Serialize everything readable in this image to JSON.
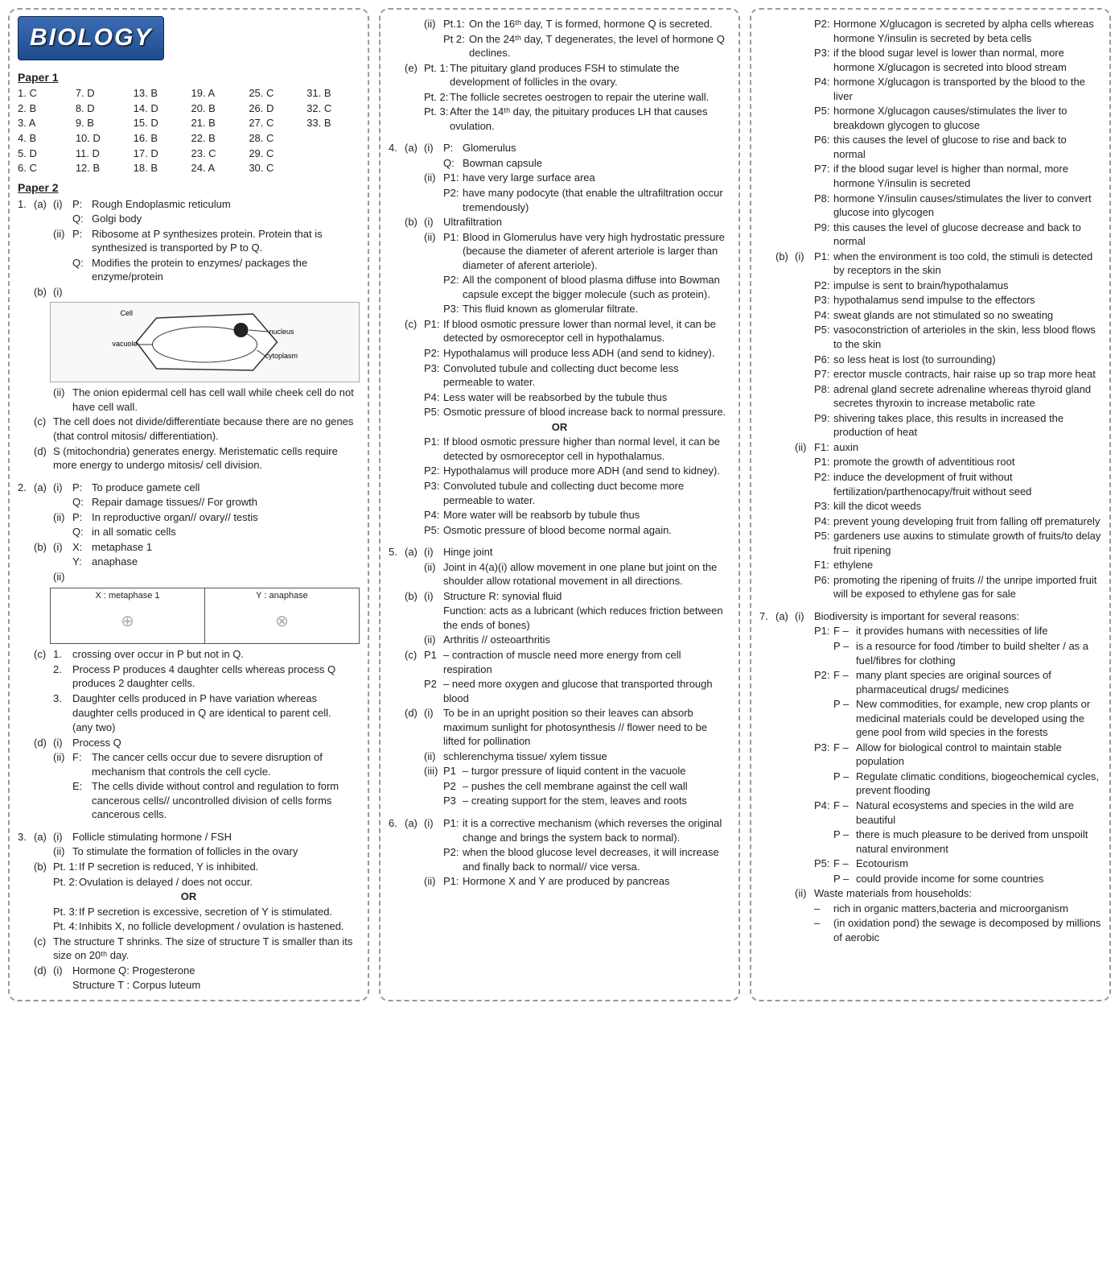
{
  "title": "BIOLOGY",
  "paper1_h": "Paper 1",
  "paper2_h": "Paper 2",
  "paper1": [
    "1. C",
    "7. D",
    "13. B",
    "19. A",
    "25. C",
    "31. B",
    "2. B",
    "8. D",
    "14. D",
    "20. B",
    "26. D",
    "32. C",
    "3. A",
    "9. B",
    "15. D",
    "21. B",
    "27. C",
    "33. B",
    "4. B",
    "10. D",
    "16. B",
    "22. B",
    "28. C",
    "",
    "5. D",
    "11. D",
    "17. D",
    "23. C",
    "29. C",
    "",
    "6. C",
    "12. B",
    "18. B",
    "24. A",
    "30. C",
    ""
  ],
  "c1": {
    "q1_a_i_p": "Rough Endoplasmic reticulum",
    "q1_a_i_q": "Golgi body",
    "q1_a_ii_p": "Ribosome at P synthesizes protein. Protein that is synthesized is transported by P to Q.",
    "q1_a_ii_q": "Modifies the protein to enzymes/ packages the enzyme/protein",
    "cell_labels": [
      "Cell",
      "vacuole",
      "nucleus",
      "cytoplasm"
    ],
    "q1_b_ii": "The onion epidermal cell has cell wall while cheek cell do not have cell wall.",
    "q1_c": "The cell does not divide/differentiate because there are no genes (that control mitosis/ differentiation).",
    "q1_d": "S (mitochondria) generates energy. Meristematic cells require more energy to undergo mitosis/ cell division.",
    "q2_a_i_p": "To produce gamete cell",
    "q2_a_i_q": "Repair damage tissues// For growth",
    "q2_a_ii_p": "In reproductive organ// ovary// testis",
    "q2_a_ii_q": "in all somatic cells",
    "q2_b_i_x": "metaphase 1",
    "q2_b_i_y": "anaphase",
    "meta_head_x": "X : metaphase 1",
    "meta_head_y": "Y : anaphase",
    "q2_c_1": "crossing over occur in P but not in Q.",
    "q2_c_2": "Process P produces 4 daughter cells whereas process Q produces 2 daughter cells.",
    "q2_c_3": "Daughter cells produced in P have variation whereas daughter cells produced in Q are identical to parent cell.",
    "q2_c_note": "(any two)",
    "q2_d_i": "Process Q",
    "q2_d_ii_f": "The cancer cells occur due to severe disruption of mechanism that controls the cell cycle.",
    "q2_d_ii_e": "The cells divide without control and regulation to form cancerous cells// uncontrolled division of cells forms cancerous cells.",
    "q3_a_i": "Follicle stimulating hormone / FSH",
    "q3_a_ii": "To stimulate the formation of follicles in the ovary",
    "q3_b_1": "If P secretion is reduced, Y is inhibited.",
    "q3_b_2": "Ovulation is delayed / does not occur.",
    "or": "OR",
    "q3_b_3": "If P secretion is excessive, secretion of Y is stimulated.",
    "q3_b_4": "Inhibits X, no follicle development / ovulation is hastened.",
    "q3_c": "The structure T shrinks. The size of structure T is smaller than its size on 20ᵗʰ day.",
    "q3_d_i_1": "Hormone Q: Progesterone",
    "q3_d_i_2": "Structure T : Corpus luteum"
  },
  "c2": {
    "q3_d_ii_pt1": "On the 16ᵗʰ day, T is formed, hormone Q is secreted.",
    "q3_d_ii_pt2": "On the 24ᵗʰ day, T degenerates, the level of hormone Q declines.",
    "q3_e_1": "The pituitary gland produces FSH to stimulate the development of follicles in the ovary.",
    "q3_e_2": "The follicle secretes oestrogen to repair the uterine wall.",
    "q3_e_3": "After the 14ᵗʰ day, the pituitary produces LH that causes ovulation.",
    "q4_a_i_p": "Glomerulus",
    "q4_a_i_q": "Bowman capsule",
    "q4_a_ii_p1": "have very large surface area",
    "q4_a_ii_p2": "have many podocyte (that enable the ultrafiltration occur tremendously)",
    "q4_b_i": "Ultrafiltration",
    "q4_b_ii_p1": "Blood in Glomerulus have very high hydrostatic pressure (because the diameter of aferent arteriole is larger than diameter of aferent arteriole).",
    "q4_b_ii_p2": "All the component of blood plasma diffuse into Bowman capsule except the bigger molecule (such as protein).",
    "q4_b_ii_p3": "This fluid known as glomerular filtrate.",
    "q4_c_p1": "If blood osmotic pressure lower than normal level, it can be detected by osmoreceptor cell in hypothalamus.",
    "q4_c_p2": "Hypothalamus will produce less ADH (and send to kidney).",
    "q4_c_p3": "Convoluted tubule and collecting duct become less permeable to water.",
    "q4_c_p4": "Less water will be reabsorbed by the tubule thus",
    "q4_c_p5": "Osmotic pressure of blood increase back to normal pressure.",
    "or": "OR",
    "q4_c2_p1": "If blood osmotic pressure higher than normal level, it can be detected by osmoreceptor cell in hypothalamus.",
    "q4_c2_p2": "Hypothalamus will produce more ADH (and send to kidney).",
    "q4_c2_p3": "Convoluted tubule and collecting duct become more permeable to water.",
    "q4_c2_p4": "More water will be reabsorb by tubule thus",
    "q4_c2_p5": "Osmotic pressure of blood become normal again.",
    "q5_a_i": "Hinge joint",
    "q5_a_ii": "Joint in 4(a)(i) allow movement in one plane but joint on the shoulder allow rotational movement in all directions.",
    "q5_b_i_1": "Structure R: synovial fluid",
    "q5_b_i_2": "Function: acts as a lubricant (which reduces friction between the ends of bones)",
    "q5_b_ii": "Arthritis // osteoarthritis",
    "q5_c_p1": "– contraction of muscle need more energy from cell respiration",
    "q5_c_p2": "– need more oxygen and glucose that transported through blood",
    "q5_d_i": "To be in an upright position so their leaves can absorb maximum sunlight for photosynthesis // flower need to be lifted for pollination",
    "q5_d_ii": "schlerenchyma tissue/ xylem tissue",
    "q5_d_iii_p1": "– turgor pressure of liquid content in the vacuole",
    "q5_d_iii_p2": "– pushes the cell membrane against the cell wall",
    "q5_d_iii_p3": "– creating support for the stem, leaves and roots",
    "q6_a_i_p1": "it is a corrective mechanism (which reverses the original change and brings the system back to normal).",
    "q6_a_i_p2": "when the blood glucose level decreases, it will increase and finally back to normal// vice versa.",
    "q6_a_ii_p1": "Hormone X and Y are produced by pancreas"
  },
  "c3": {
    "p2": "Hormone X/glucagon is secreted by alpha cells whereas hormone Y/insulin is secreted by beta cells",
    "p3": "if the blood sugar level is lower than normal, more hormone X/glucagon is secreted into blood stream",
    "p4": "hormone X/glucagon is transported by the blood to the liver",
    "p5": "hormone X/glucagon causes/stimulates the liver to breakdown glycogen to glucose",
    "p6": "this causes the level of glucose to rise and back to normal",
    "p7": "if the blood sugar level is higher than normal, more hormone Y/insulin is secreted",
    "p8": "hormone Y/insulin causes/stimulates the liver to convert glucose into glycogen",
    "p9": "this causes the level of glucose decrease and back to normal",
    "b_i_p1": "when the environment is too cold, the stimuli is detected by receptors in the skin",
    "b_i_p2": "impulse is sent to brain/hypothalamus",
    "b_i_p3": "hypothalamus send impulse to the effectors",
    "b_i_p4": "sweat glands are not stimulated so no sweating",
    "b_i_p5": "vasoconstriction of arterioles in the skin, less blood flows to the skin",
    "b_i_p6": "so less heat is lost (to surrounding)",
    "b_i_p7": "erector muscle contracts, hair raise up so trap more heat",
    "b_i_p8": "adrenal gland secrete adrenaline whereas thyroid gland secretes thyroxin to increase metabolic rate",
    "b_i_p9": "shivering takes place, this results in increased the production of heat",
    "b_ii_f1": "auxin",
    "b_ii_p1": "promote the growth of adventitious root",
    "b_ii_p2": "induce the development of fruit without fertilization/parthenocapy/fruit without seed",
    "b_ii_p3": "kill the dicot weeds",
    "b_ii_p4": "prevent young developing fruit from falling off prematurely",
    "b_ii_p5": "gardeners use auxins to stimulate growth of fruits/to delay fruit ripening",
    "b_ii_f1b": "ethylene",
    "b_ii_p6": "promoting the ripening of fruits // the unripe imported fruit will be exposed to ethylene gas for sale",
    "q7_a_i": "Biodiversity is important for several reasons:",
    "q7_p1f": "it provides humans with necessities of life",
    "q7_p1p": "is a resource for food /timber to build shelter / as a fuel/fibres for clothing",
    "q7_p2f": "many plant species are original sources of pharmaceutical drugs/ medicines",
    "q7_p2p": "New commodities, for example, new crop plants or medicinal materials could be developed using the gene pool from wild species in the forests",
    "q7_p3f": "Allow for biological control to maintain stable population",
    "q7_p3p": "Regulate climatic conditions, biogeochemical cycles, prevent flooding",
    "q7_p4f": "Natural ecosystems and species in the wild are beautiful",
    "q7_p4p": "there is much pleasure to be derived from unspoilt natural environment",
    "q7_p5f": "Ecotourism",
    "q7_p5p": "could provide income for some countries",
    "q7_ii": "Waste materials from households:",
    "q7_ii_1": "rich in organic matters,bacteria and microorganism",
    "q7_ii_2": "(in oxidation pond) the sewage is decomposed by millions of aerobic"
  }
}
